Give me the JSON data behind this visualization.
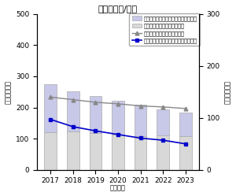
{
  "title": "国内　金額/台数",
  "ylabel_left": "金額（億円）",
  "ylabel_right": "台数（万台）",
  "xlabel": "（年度）",
  "years": [
    2017,
    2018,
    2019,
    2020,
    2021,
    2022,
    2023
  ],
  "fax_amount": [
    155,
    130,
    118,
    110,
    100,
    85,
    75
  ],
  "cordless_amount": [
    120,
    122,
    118,
    112,
    108,
    110,
    108
  ],
  "cordless_units": [
    140,
    135,
    130,
    127,
    123,
    121,
    118
  ],
  "fax_units": [
    97,
    83,
    75,
    68,
    61,
    57,
    50
  ],
  "ylim_left": [
    0,
    500
  ],
  "ylim_right": [
    0,
    300
  ],
  "yticks_left": [
    0,
    100,
    200,
    300,
    400,
    500
  ],
  "yticks_right": [
    0,
    100,
    200,
    300
  ],
  "fax_bar_color": "#c8c8e8",
  "cordless_bar_color": "#d8d8d8",
  "cordless_line_color": "#888888",
  "fax_line_color": "#0000cc",
  "legend_labels": [
    "バーソナルファクシミリ金額（左軸）",
    "コードレスホン金額（左軸）",
    "コードレスホン台数（右軸）",
    "バーソナルファクシミリ台数（右軸）"
  ],
  "bar_width": 0.55
}
